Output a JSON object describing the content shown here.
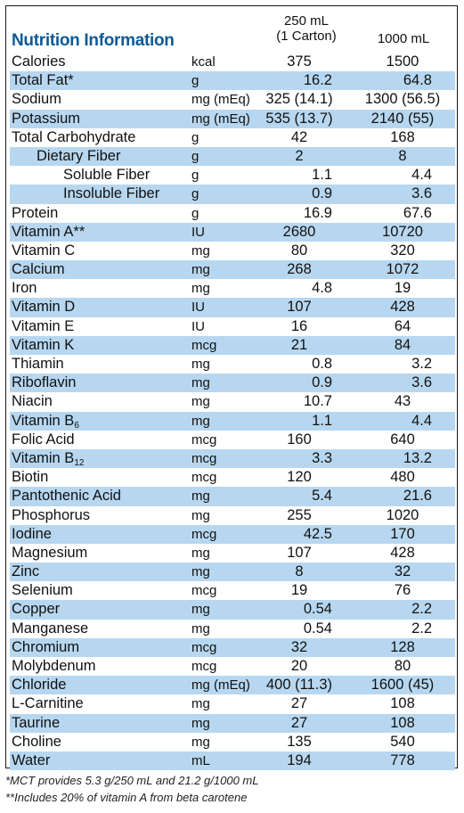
{
  "title": "Nutrition Information",
  "columns": {
    "serving_line1": "250 mL",
    "serving_line2": "(1 Carton)",
    "liter": "1000 mL"
  },
  "rows": [
    {
      "name": "Calories",
      "unit": "kcal",
      "v1": "375",
      "v2": "1500"
    },
    {
      "name": "Total Fat*",
      "unit": "g",
      "v1": "16.2",
      "v2": "64.8"
    },
    {
      "name": "Sodium",
      "unit": "mg (mEq)",
      "v1": "325 (14.1)",
      "v2": "1300 (56.5)"
    },
    {
      "name": "Potassium",
      "unit": "mg (mEq)",
      "v1": "535 (13.7)",
      "v2": "2140 (55)"
    },
    {
      "name": "Total Carbohydrate",
      "unit": "g",
      "v1": "42",
      "v2": "168"
    },
    {
      "name": "Dietary Fiber",
      "unit": "g",
      "v1": "2",
      "v2": "8"
    },
    {
      "name": "Soluble Fiber",
      "unit": "g",
      "v1": "1.1",
      "v2": "4.4"
    },
    {
      "name": "Insoluble Fiber",
      "unit": "g",
      "v1": "0.9",
      "v2": "3.6"
    },
    {
      "name": "Protein",
      "unit": "g",
      "v1": "16.9",
      "v2": "67.6"
    },
    {
      "name": "Vitamin A**",
      "unit": "IU",
      "v1": "2680",
      "v2": "10720"
    },
    {
      "name": "Vitamin C",
      "unit": "mg",
      "v1": "80",
      "v2": "320"
    },
    {
      "name": "Calcium",
      "unit": "mg",
      "v1": "268",
      "v2": "1072"
    },
    {
      "name": "Iron",
      "unit": "mg",
      "v1": "4.8",
      "v2": "19"
    },
    {
      "name": "Vitamin D",
      "unit": "IU",
      "v1": "107",
      "v2": "428"
    },
    {
      "name": "Vitamin E",
      "unit": "IU",
      "v1": "16",
      "v2": "64"
    },
    {
      "name": "Vitamin K",
      "unit": "mcg",
      "v1": "21",
      "v2": "84"
    },
    {
      "name": "Thiamin",
      "unit": "mg",
      "v1": "0.8",
      "v2": "3.2"
    },
    {
      "name": "Riboflavin",
      "unit": "mg",
      "v1": "0.9",
      "v2": "3.6"
    },
    {
      "name": "Niacin",
      "unit": "mg",
      "v1": "10.7",
      "v2": "43"
    },
    {
      "name": "Vitamin B",
      "sub": "6",
      "unit": "mg",
      "v1": "1.1",
      "v2": "4.4"
    },
    {
      "name": "Folic Acid",
      "unit": "mcg",
      "v1": "160",
      "v2": "640"
    },
    {
      "name": "Vitamin B",
      "sub": "12",
      "unit": "mcg",
      "v1": "3.3",
      "v2": "13.2"
    },
    {
      "name": "Biotin",
      "unit": "mcg",
      "v1": "120",
      "v2": "480"
    },
    {
      "name": "Pantothenic Acid",
      "unit": "mg",
      "v1": "5.4",
      "v2": "21.6"
    },
    {
      "name": "Phosphorus",
      "unit": "mg",
      "v1": "255",
      "v2": "1020"
    },
    {
      "name": "Iodine",
      "unit": "mcg",
      "v1": "42.5",
      "v2": "170"
    },
    {
      "name": "Magnesium",
      "unit": "mg",
      "v1": "107",
      "v2": "428"
    },
    {
      "name": "Zinc",
      "unit": "mg",
      "v1": "8",
      "v2": "32"
    },
    {
      "name": "Selenium",
      "unit": "mcg",
      "v1": "19",
      "v2": "76"
    },
    {
      "name": "Copper",
      "unit": "mg",
      "v1": "0.54",
      "v2": "2.2"
    },
    {
      "name": "Manganese",
      "unit": "mg",
      "v1": "0.54",
      "v2": "2.2"
    },
    {
      "name": "Chromium",
      "unit": "mcg",
      "v1": "32",
      "v2": "128"
    },
    {
      "name": "Molybdenum",
      "unit": "mcg",
      "v1": "20",
      "v2": "80"
    },
    {
      "name": "Chloride",
      "unit": "mg (mEq)",
      "v1": "400 (11.3)",
      "v2": "1600 (45)"
    },
    {
      "name": "L-Carnitine",
      "unit": "mg",
      "v1": "27",
      "v2": "108"
    },
    {
      "name": "Taurine",
      "unit": "mg",
      "v1": "27",
      "v2": "108"
    },
    {
      "name": "Choline",
      "unit": "mg",
      "v1": "135",
      "v2": "540"
    },
    {
      "name": "Water",
      "unit": "mL",
      "v1": "194",
      "v2": "778"
    }
  ],
  "footnotes": [
    "*MCT provides 5.3 g/250 mL and 21.2 g/1000 mL",
    "**Includes 20% of vitamin A from beta carotene"
  ],
  "colors": {
    "title": "#0e5a95",
    "shade": "#b7d7f0"
  }
}
